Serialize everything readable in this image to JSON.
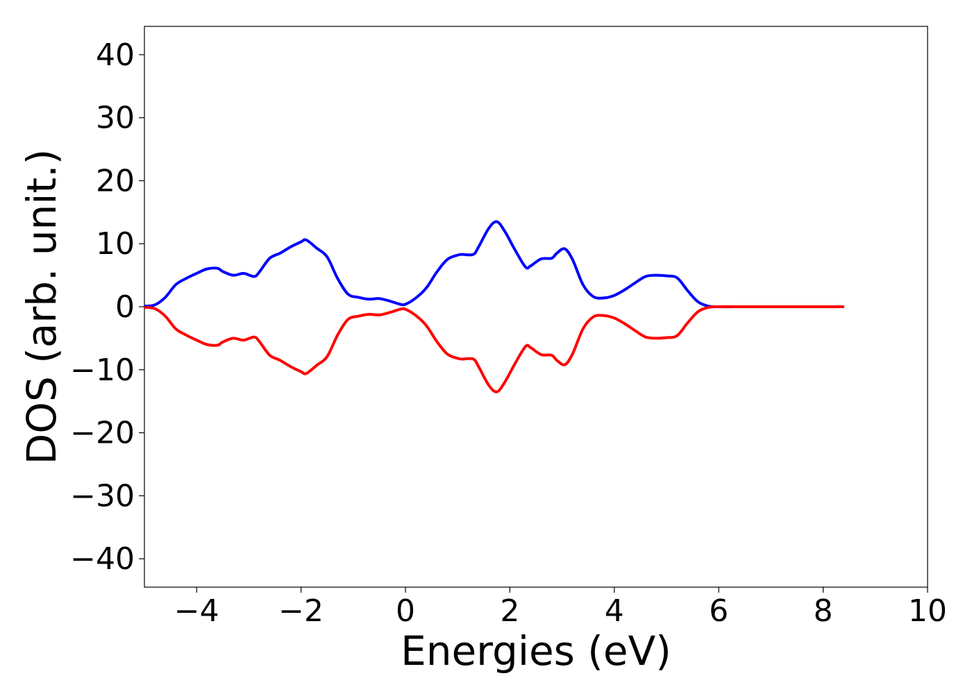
{
  "chart_data": {
    "type": "line",
    "xlabel": "Energies (eV)",
    "ylabel": "DOS (arb. unit.)",
    "xlim": [
      -5,
      10
    ],
    "ylim": [
      -44.5,
      44.5
    ],
    "xticks": [
      -4,
      -2,
      0,
      2,
      4,
      6,
      8,
      10
    ],
    "xtick_labels": [
      "−4",
      "−2",
      "0",
      "2",
      "4",
      "6",
      "8",
      "10"
    ],
    "yticks": [
      40,
      30,
      20,
      10,
      0,
      -10,
      -20,
      -30,
      -40
    ],
    "ytick_labels": [
      "40",
      "30",
      "20",
      "10",
      "0",
      "−10",
      "−20",
      "−30",
      "−40"
    ],
    "grid": false,
    "series": [
      {
        "color": "#0000ff",
        "x": [
          -5.0,
          -4.8,
          -4.6,
          -4.4,
          -4.2,
          -4.0,
          -3.8,
          -3.6,
          -3.5,
          -3.3,
          -3.1,
          -2.9,
          -2.8,
          -2.6,
          -2.4,
          -2.2,
          -2.0,
          -1.9,
          -1.7,
          -1.5,
          -1.3,
          -1.1,
          -0.9,
          -0.7,
          -0.5,
          -0.3,
          -0.1,
          0.0,
          0.2,
          0.4,
          0.6,
          0.8,
          1.0,
          1.1,
          1.3,
          1.4,
          1.6,
          1.75,
          1.9,
          2.1,
          2.3,
          2.4,
          2.6,
          2.8,
          2.9,
          3.05,
          3.2,
          3.4,
          3.6,
          3.8,
          4.0,
          4.2,
          4.4,
          4.6,
          4.8,
          5.0,
          5.2,
          5.4,
          5.6,
          5.8,
          6.0,
          6.5,
          7.0,
          7.5,
          8.0,
          8.4
        ],
        "values": [
          0.1,
          0.3,
          1.5,
          3.5,
          4.5,
          5.3,
          6.0,
          6.1,
          5.6,
          5.0,
          5.3,
          4.8,
          5.5,
          7.7,
          8.5,
          9.5,
          10.3,
          10.6,
          9.3,
          7.9,
          4.5,
          2.0,
          1.5,
          1.2,
          1.3,
          0.9,
          0.4,
          0.4,
          1.4,
          3.0,
          5.5,
          7.5,
          8.2,
          8.3,
          8.3,
          9.5,
          12.5,
          13.5,
          12.0,
          9.0,
          6.3,
          6.5,
          7.6,
          7.7,
          8.5,
          9.2,
          7.5,
          3.5,
          1.6,
          1.4,
          1.8,
          2.7,
          3.8,
          4.8,
          5.0,
          4.9,
          4.6,
          2.6,
          0.8,
          0.1,
          0.0,
          0.0,
          0.0,
          0.0,
          0.0,
          0.0
        ]
      },
      {
        "color": "#ff0000",
        "x": [
          -5.0,
          -4.8,
          -4.6,
          -4.4,
          -4.2,
          -4.0,
          -3.8,
          -3.6,
          -3.5,
          -3.3,
          -3.1,
          -2.9,
          -2.8,
          -2.6,
          -2.4,
          -2.2,
          -2.0,
          -1.9,
          -1.7,
          -1.5,
          -1.3,
          -1.1,
          -0.9,
          -0.7,
          -0.5,
          -0.3,
          -0.1,
          0.0,
          0.2,
          0.4,
          0.6,
          0.8,
          1.0,
          1.1,
          1.3,
          1.4,
          1.6,
          1.75,
          1.9,
          2.1,
          2.3,
          2.4,
          2.6,
          2.8,
          2.9,
          3.05,
          3.2,
          3.4,
          3.6,
          3.8,
          4.0,
          4.2,
          4.4,
          4.6,
          4.8,
          5.0,
          5.2,
          5.4,
          5.6,
          5.8,
          6.0,
          6.5,
          7.0,
          7.5,
          8.0,
          8.4
        ],
        "values": [
          -0.1,
          -0.3,
          -1.5,
          -3.5,
          -4.5,
          -5.3,
          -6.0,
          -6.1,
          -5.6,
          -5.0,
          -5.3,
          -4.8,
          -5.5,
          -7.7,
          -8.5,
          -9.5,
          -10.3,
          -10.6,
          -9.3,
          -7.9,
          -4.5,
          -2.0,
          -1.5,
          -1.2,
          -1.3,
          -0.9,
          -0.4,
          -0.4,
          -1.4,
          -3.0,
          -5.5,
          -7.5,
          -8.2,
          -8.3,
          -8.3,
          -9.5,
          -12.5,
          -13.5,
          -12.0,
          -9.0,
          -6.3,
          -6.5,
          -7.6,
          -7.7,
          -8.5,
          -9.2,
          -7.5,
          -3.5,
          -1.6,
          -1.4,
          -1.8,
          -2.7,
          -3.8,
          -4.8,
          -5.0,
          -4.9,
          -4.6,
          -2.6,
          -0.8,
          -0.1,
          0.0,
          0.0,
          0.0,
          0.0,
          0.0,
          0.0
        ]
      }
    ]
  }
}
